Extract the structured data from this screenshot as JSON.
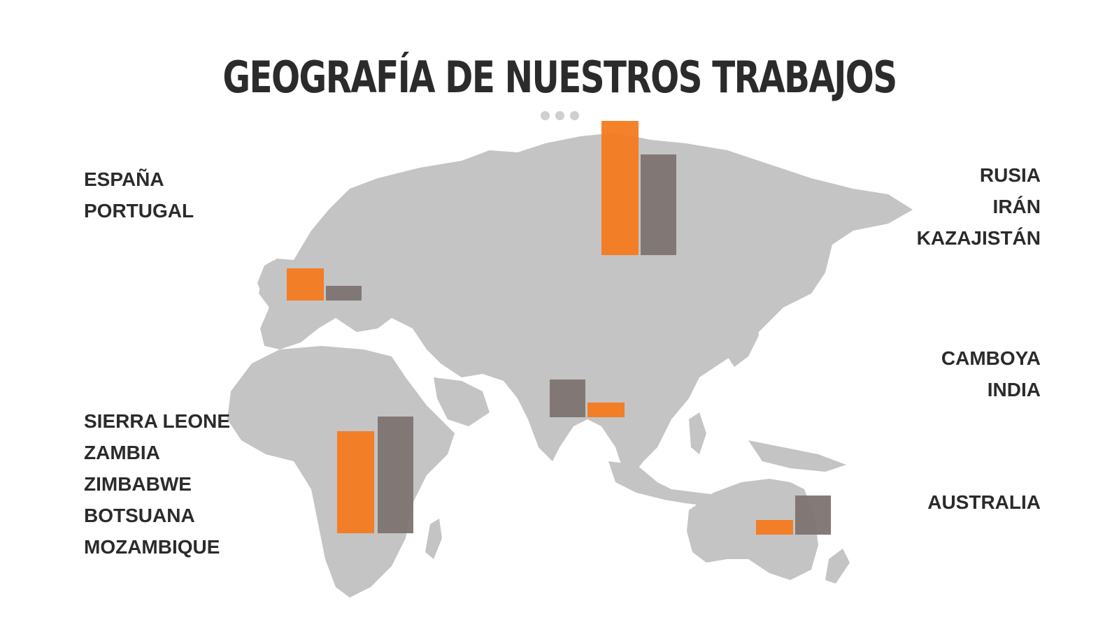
{
  "title": "GEOGRAFÍA DE NUESTROS TRABAJOS",
  "colors": {
    "series_a": "#f47a1f",
    "series_b": "#7d7472",
    "map": "#c4c4c4",
    "text": "#2b2b2b"
  },
  "regions": {
    "europe": [
      "ESPAÑA",
      "PORTUGAL"
    ],
    "russia": [
      "RUSIA",
      "IRÁN",
      "KAZAJISTÁN"
    ],
    "asia": [
      "CAMBOYA",
      "INDIA"
    ],
    "africa": [
      "SIERRA LEONE",
      "ZAMBIA",
      "ZIMBABWE",
      "BOTSUANA",
      "MOZAMBIQUE"
    ],
    "oceania": [
      "AUSTRALIA"
    ]
  },
  "bars": {
    "europe": {
      "a": 0.24,
      "b": 0.11
    },
    "russia": {
      "a": 1.0,
      "b": 0.75
    },
    "asia": {
      "a": 0.11,
      "b": 0.28
    },
    "africa": {
      "a": 0.76,
      "b": 0.87
    },
    "oceania": {
      "a": 0.11,
      "b": 0.29
    }
  }
}
